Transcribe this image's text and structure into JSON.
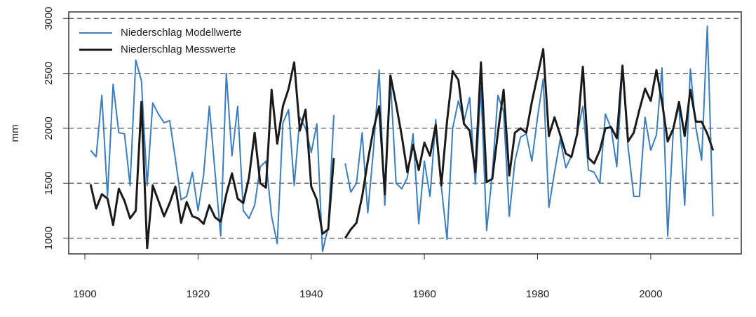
{
  "chart_data": {
    "type": "line",
    "y_label": "mm",
    "x": [
      1901,
      1902,
      1903,
      1904,
      1905,
      1906,
      1907,
      1908,
      1909,
      1910,
      1911,
      1912,
      1913,
      1914,
      1915,
      1916,
      1917,
      1918,
      1919,
      1920,
      1921,
      1922,
      1923,
      1924,
      1925,
      1926,
      1927,
      1928,
      1929,
      1930,
      1931,
      1932,
      1933,
      1934,
      1935,
      1936,
      1937,
      1938,
      1939,
      1940,
      1941,
      1942,
      1943,
      1944,
      1945,
      1946,
      1947,
      1948,
      1949,
      1950,
      1951,
      1952,
      1953,
      1954,
      1955,
      1956,
      1957,
      1958,
      1959,
      1960,
      1961,
      1962,
      1963,
      1964,
      1965,
      1966,
      1967,
      1968,
      1969,
      1970,
      1971,
      1972,
      1973,
      1974,
      1975,
      1976,
      1977,
      1978,
      1979,
      1980,
      1981,
      1982,
      1983,
      1984,
      1985,
      1986,
      1987,
      1988,
      1989,
      1990,
      1991,
      1992,
      1993,
      1994,
      1995,
      1996,
      1997,
      1998,
      1999,
      2000,
      2001,
      2002,
      2003,
      2004,
      2005,
      2006,
      2007,
      2008,
      2009,
      2010,
      2011
    ],
    "series": [
      {
        "name": "Niederschlag Modellwerte",
        "color": "#3a7dc0",
        "width": 2,
        "values": [
          1800,
          1740,
          2300,
          1380,
          2400,
          1960,
          1950,
          1480,
          2620,
          2430,
          1480,
          2230,
          2130,
          2050,
          2070,
          1720,
          1350,
          1380,
          1600,
          1250,
          1580,
          2200,
          1600,
          1020,
          2500,
          1750,
          2200,
          1250,
          1180,
          1300,
          1650,
          1700,
          1200,
          950,
          2050,
          2170,
          1480,
          2100,
          2000,
          1780,
          2040,
          880,
          1100,
          2120,
          null,
          1680,
          1420,
          1500,
          1960,
          1230,
          1800,
          2530,
          1300,
          2450,
          1500,
          1450,
          1550,
          1950,
          1130,
          1700,
          1380,
          2080,
          1470,
          990,
          2000,
          2250,
          2060,
          2280,
          1490,
          2370,
          1070,
          1590,
          2300,
          2150,
          1200,
          1700,
          1920,
          1950,
          1700,
          2100,
          2450,
          1280,
          1600,
          1900,
          1640,
          1750,
          1950,
          2200,
          1620,
          1600,
          1500,
          2130,
          2000,
          1650,
          2550,
          1830,
          1380,
          1380,
          2100,
          1800,
          1940,
          2550,
          1020,
          2000,
          2200,
          1300,
          2540,
          2000,
          1710,
          2930,
          1200
        ]
      },
      {
        "name": "Niederschlag Messwerte",
        "color": "#1a1a1a",
        "width": 3,
        "values": [
          1490,
          1270,
          1400,
          1360,
          1120,
          1450,
          1340,
          1180,
          1250,
          2240,
          910,
          1480,
          1340,
          1200,
          1320,
          1470,
          1140,
          1330,
          1200,
          1180,
          1130,
          1300,
          1190,
          1150,
          1400,
          1590,
          1360,
          1320,
          1550,
          1960,
          1500,
          1460,
          2350,
          1860,
          2200,
          2360,
          2600,
          1980,
          2170,
          1470,
          1350,
          1040,
          1080,
          1730,
          null,
          1000,
          1080,
          1140,
          1380,
          1700,
          1990,
          2200,
          1400,
          2480,
          2220,
          1930,
          1600,
          1850,
          1620,
          1870,
          1750,
          2030,
          1480,
          2060,
          2520,
          2440,
          2040,
          1980,
          1600,
          2600,
          1510,
          1540,
          1960,
          2350,
          1570,
          1960,
          2000,
          1960,
          2240,
          2480,
          2720,
          1930,
          2100,
          1940,
          1770,
          1740,
          1950,
          2560,
          1730,
          1680,
          1800,
          2000,
          2010,
          1910,
          2570,
          1880,
          1960,
          2170,
          2360,
          2250,
          2530,
          2240,
          1880,
          2000,
          2240,
          1930,
          2350,
          2060,
          2060,
          1950,
          1800
        ]
      }
    ],
    "xlim": [
      1897.15,
      2016
    ],
    "ylim": [
      857,
      3059
    ],
    "xticks": [
      1900,
      1920,
      1940,
      1960,
      1980,
      2000
    ],
    "yticks": [
      1000,
      1500,
      2000,
      2500,
      3000
    ],
    "grid": true,
    "legend": "top-left"
  }
}
